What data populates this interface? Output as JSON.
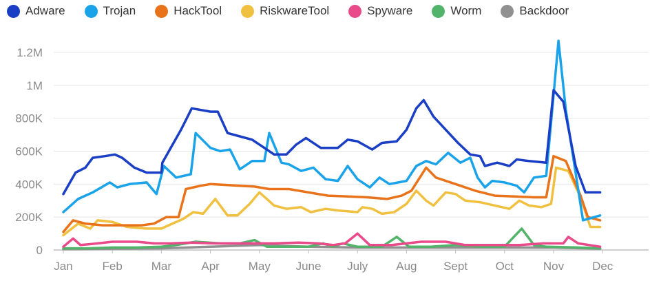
{
  "chart_data": {
    "type": "line",
    "title": "",
    "xlabel": "",
    "ylabel": "",
    "grid": true,
    "legend_position": "top",
    "ylim": [
      0,
      1300000
    ],
    "yticks": [
      0,
      200000,
      400000,
      600000,
      800000,
      1000000,
      1200000
    ],
    "ytick_labels": [
      "0",
      "200K",
      "400K",
      "600K",
      "800K",
      "1M",
      "1.2M"
    ],
    "xlim": [
      0,
      12
    ],
    "months": [
      "Jan",
      "Feb",
      "Mar",
      "Apr",
      "May",
      "June",
      "July",
      "Aug",
      "Sept",
      "Oct",
      "Nov",
      "Dec"
    ],
    "series": [
      {
        "name": "Adware",
        "color": "#1a3ec4",
        "points": [
          [
            0.0,
            340000
          ],
          [
            0.25,
            470000
          ],
          [
            0.45,
            500000
          ],
          [
            0.6,
            560000
          ],
          [
            0.85,
            570000
          ],
          [
            1.05,
            580000
          ],
          [
            1.2,
            560000
          ],
          [
            1.45,
            500000
          ],
          [
            1.7,
            470000
          ],
          [
            2.0,
            470000
          ],
          [
            2.02,
            530000
          ],
          [
            2.4,
            730000
          ],
          [
            2.62,
            860000
          ],
          [
            3.0,
            840000
          ],
          [
            3.15,
            840000
          ],
          [
            3.35,
            710000
          ],
          [
            3.6,
            690000
          ],
          [
            3.85,
            670000
          ],
          [
            4.05,
            630000
          ],
          [
            4.3,
            580000
          ],
          [
            4.55,
            580000
          ],
          [
            4.75,
            640000
          ],
          [
            4.95,
            680000
          ],
          [
            5.25,
            620000
          ],
          [
            5.6,
            620000
          ],
          [
            5.8,
            670000
          ],
          [
            6.0,
            660000
          ],
          [
            6.3,
            610000
          ],
          [
            6.5,
            650000
          ],
          [
            6.8,
            660000
          ],
          [
            7.0,
            730000
          ],
          [
            7.2,
            860000
          ],
          [
            7.35,
            910000
          ],
          [
            7.55,
            810000
          ],
          [
            7.8,
            730000
          ],
          [
            8.05,
            650000
          ],
          [
            8.3,
            580000
          ],
          [
            8.5,
            570000
          ],
          [
            8.6,
            510000
          ],
          [
            8.85,
            530000
          ],
          [
            9.1,
            510000
          ],
          [
            9.25,
            550000
          ],
          [
            9.5,
            540000
          ],
          [
            9.85,
            530000
          ],
          [
            10.0,
            970000
          ],
          [
            10.2,
            900000
          ],
          [
            10.45,
            510000
          ],
          [
            10.65,
            350000
          ],
          [
            10.95,
            350000
          ]
        ]
      },
      {
        "name": "Trojan",
        "color": "#1aa3e8",
        "points": [
          [
            0.0,
            230000
          ],
          [
            0.3,
            310000
          ],
          [
            0.6,
            350000
          ],
          [
            0.95,
            410000
          ],
          [
            1.1,
            380000
          ],
          [
            1.35,
            400000
          ],
          [
            1.7,
            410000
          ],
          [
            1.9,
            340000
          ],
          [
            2.05,
            510000
          ],
          [
            2.3,
            440000
          ],
          [
            2.6,
            460000
          ],
          [
            2.7,
            710000
          ],
          [
            3.0,
            620000
          ],
          [
            3.2,
            600000
          ],
          [
            3.4,
            610000
          ],
          [
            3.6,
            490000
          ],
          [
            3.85,
            540000
          ],
          [
            4.1,
            540000
          ],
          [
            4.2,
            710000
          ],
          [
            4.45,
            530000
          ],
          [
            4.6,
            520000
          ],
          [
            4.85,
            480000
          ],
          [
            5.1,
            500000
          ],
          [
            5.35,
            430000
          ],
          [
            5.6,
            420000
          ],
          [
            5.8,
            510000
          ],
          [
            6.0,
            430000
          ],
          [
            6.25,
            380000
          ],
          [
            6.45,
            440000
          ],
          [
            6.65,
            400000
          ],
          [
            7.0,
            420000
          ],
          [
            7.2,
            510000
          ],
          [
            7.4,
            540000
          ],
          [
            7.6,
            520000
          ],
          [
            7.85,
            590000
          ],
          [
            8.1,
            530000
          ],
          [
            8.3,
            560000
          ],
          [
            8.45,
            440000
          ],
          [
            8.6,
            380000
          ],
          [
            8.75,
            420000
          ],
          [
            9.0,
            410000
          ],
          [
            9.25,
            390000
          ],
          [
            9.4,
            350000
          ],
          [
            9.6,
            440000
          ],
          [
            9.85,
            450000
          ],
          [
            10.1,
            1270000
          ],
          [
            10.25,
            850000
          ],
          [
            10.6,
            180000
          ],
          [
            10.95,
            210000
          ]
        ]
      },
      {
        "name": "HackTool",
        "color": "#e8731a",
        "points": [
          [
            0.0,
            110000
          ],
          [
            0.2,
            180000
          ],
          [
            0.45,
            160000
          ],
          [
            0.8,
            150000
          ],
          [
            1.2,
            150000
          ],
          [
            1.6,
            150000
          ],
          [
            1.85,
            160000
          ],
          [
            2.1,
            200000
          ],
          [
            2.35,
            200000
          ],
          [
            2.5,
            370000
          ],
          [
            2.8,
            390000
          ],
          [
            3.0,
            400000
          ],
          [
            3.6,
            390000
          ],
          [
            3.9,
            385000
          ],
          [
            4.2,
            370000
          ],
          [
            4.6,
            370000
          ],
          [
            5.0,
            350000
          ],
          [
            5.4,
            330000
          ],
          [
            5.8,
            325000
          ],
          [
            6.2,
            320000
          ],
          [
            6.6,
            310000
          ],
          [
            6.9,
            330000
          ],
          [
            7.1,
            360000
          ],
          [
            7.4,
            500000
          ],
          [
            7.6,
            440000
          ],
          [
            8.0,
            400000
          ],
          [
            8.4,
            360000
          ],
          [
            8.8,
            330000
          ],
          [
            9.2,
            325000
          ],
          [
            9.6,
            320000
          ],
          [
            9.85,
            320000
          ],
          [
            10.0,
            570000
          ],
          [
            10.25,
            540000
          ],
          [
            10.55,
            330000
          ],
          [
            10.7,
            200000
          ],
          [
            10.95,
            180000
          ]
        ]
      },
      {
        "name": "RiskwareTool",
        "color": "#f0c040",
        "points": [
          [
            0.0,
            90000
          ],
          [
            0.3,
            160000
          ],
          [
            0.55,
            130000
          ],
          [
            0.7,
            180000
          ],
          [
            1.0,
            170000
          ],
          [
            1.3,
            140000
          ],
          [
            1.7,
            130000
          ],
          [
            2.0,
            130000
          ],
          [
            2.45,
            190000
          ],
          [
            2.65,
            230000
          ],
          [
            2.85,
            220000
          ],
          [
            3.1,
            310000
          ],
          [
            3.35,
            210000
          ],
          [
            3.55,
            210000
          ],
          [
            3.8,
            280000
          ],
          [
            4.0,
            350000
          ],
          [
            4.3,
            270000
          ],
          [
            4.55,
            250000
          ],
          [
            4.85,
            260000
          ],
          [
            5.05,
            230000
          ],
          [
            5.35,
            250000
          ],
          [
            5.6,
            240000
          ],
          [
            6.0,
            230000
          ],
          [
            6.1,
            260000
          ],
          [
            6.3,
            250000
          ],
          [
            6.5,
            220000
          ],
          [
            6.75,
            230000
          ],
          [
            7.0,
            280000
          ],
          [
            7.2,
            360000
          ],
          [
            7.4,
            300000
          ],
          [
            7.55,
            270000
          ],
          [
            7.8,
            350000
          ],
          [
            8.0,
            340000
          ],
          [
            8.2,
            300000
          ],
          [
            8.5,
            290000
          ],
          [
            8.8,
            270000
          ],
          [
            9.1,
            250000
          ],
          [
            9.3,
            300000
          ],
          [
            9.5,
            270000
          ],
          [
            9.75,
            260000
          ],
          [
            9.95,
            280000
          ],
          [
            10.05,
            500000
          ],
          [
            10.3,
            480000
          ],
          [
            10.55,
            320000
          ],
          [
            10.75,
            140000
          ],
          [
            10.95,
            140000
          ]
        ]
      },
      {
        "name": "Spyware",
        "color": "#e84a8a",
        "points": [
          [
            0.0,
            20000
          ],
          [
            0.2,
            70000
          ],
          [
            0.35,
            30000
          ],
          [
            0.7,
            40000
          ],
          [
            1.0,
            50000
          ],
          [
            1.5,
            50000
          ],
          [
            1.85,
            40000
          ],
          [
            2.2,
            40000
          ],
          [
            2.6,
            45000
          ],
          [
            3.1,
            40000
          ],
          [
            3.7,
            40000
          ],
          [
            4.3,
            40000
          ],
          [
            4.8,
            45000
          ],
          [
            5.2,
            40000
          ],
          [
            5.5,
            30000
          ],
          [
            5.75,
            40000
          ],
          [
            6.0,
            100000
          ],
          [
            6.25,
            30000
          ],
          [
            6.7,
            30000
          ],
          [
            7.0,
            40000
          ],
          [
            7.3,
            50000
          ],
          [
            7.8,
            50000
          ],
          [
            8.2,
            30000
          ],
          [
            8.8,
            30000
          ],
          [
            9.3,
            30000
          ],
          [
            9.8,
            40000
          ],
          [
            10.2,
            40000
          ],
          [
            10.3,
            80000
          ],
          [
            10.5,
            40000
          ],
          [
            10.95,
            20000
          ]
        ]
      },
      {
        "name": "Worm",
        "color": "#52b36a",
        "points": [
          [
            0.0,
            10000
          ],
          [
            0.5,
            10000
          ],
          [
            1.0,
            15000
          ],
          [
            1.5,
            15000
          ],
          [
            2.0,
            20000
          ],
          [
            2.3,
            30000
          ],
          [
            2.7,
            50000
          ],
          [
            3.2,
            40000
          ],
          [
            3.6,
            40000
          ],
          [
            3.9,
            60000
          ],
          [
            4.15,
            20000
          ],
          [
            4.6,
            20000
          ],
          [
            5.0,
            20000
          ],
          [
            5.3,
            40000
          ],
          [
            5.5,
            20000
          ],
          [
            5.7,
            40000
          ],
          [
            6.0,
            20000
          ],
          [
            6.5,
            20000
          ],
          [
            6.8,
            80000
          ],
          [
            7.05,
            20000
          ],
          [
            7.5,
            20000
          ],
          [
            8.0,
            30000
          ],
          [
            8.5,
            20000
          ],
          [
            9.0,
            20000
          ],
          [
            9.35,
            130000
          ],
          [
            9.6,
            30000
          ],
          [
            9.85,
            20000
          ],
          [
            10.5,
            15000
          ],
          [
            10.95,
            10000
          ]
        ]
      },
      {
        "name": "Backdoor",
        "color": "#909090",
        "points": [
          [
            0.0,
            5000
          ],
          [
            1.0,
            8000
          ],
          [
            2.0,
            10000
          ],
          [
            3.0,
            20000
          ],
          [
            4.0,
            30000
          ],
          [
            5.0,
            20000
          ],
          [
            6.0,
            15000
          ],
          [
            7.0,
            15000
          ],
          [
            8.0,
            15000
          ],
          [
            9.0,
            15000
          ],
          [
            10.0,
            15000
          ],
          [
            10.95,
            8000
          ]
        ]
      }
    ]
  }
}
